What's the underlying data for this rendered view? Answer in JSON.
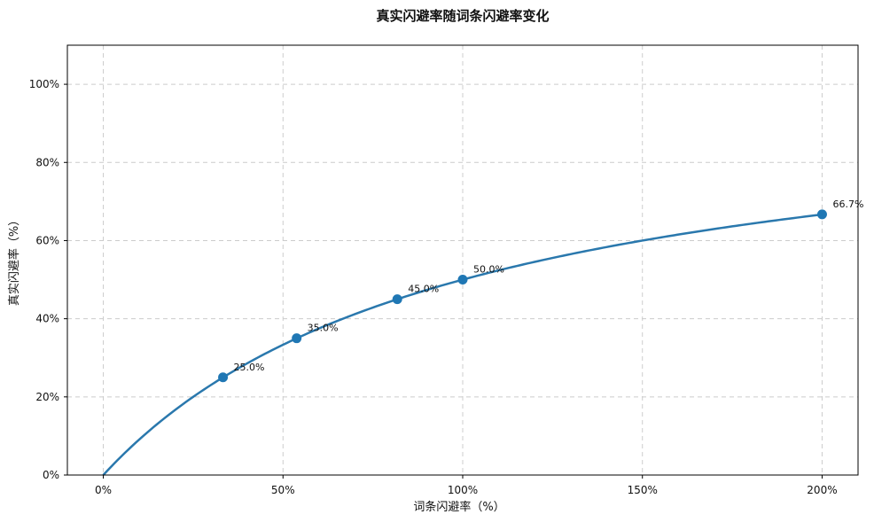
{
  "chart_data": {
    "type": "line",
    "title": "真实闪避率随词条闪避率变化",
    "xlabel": "词条闪避率（%）",
    "ylabel": "真实闪避率（%）",
    "xlim": [
      -10,
      210
    ],
    "ylim": [
      0,
      110
    ],
    "x_ticks": [
      0,
      50,
      100,
      150,
      200
    ],
    "x_tick_labels": [
      "0%",
      "50%",
      "100%",
      "150%",
      "200%"
    ],
    "y_ticks": [
      0,
      20,
      40,
      60,
      80,
      100
    ],
    "y_tick_labels": [
      "0%",
      "20%",
      "40%",
      "60%",
      "80%",
      "100%"
    ],
    "grid": true,
    "line_color": "#2a78ad",
    "marker_color": "#1f77b4",
    "curve": {
      "x_min": 0,
      "x_max": 200
    },
    "points": [
      {
        "x": 33.3,
        "y": 25.0,
        "label": "25.0%"
      },
      {
        "x": 53.8,
        "y": 35.0,
        "label": "35.0%"
      },
      {
        "x": 81.8,
        "y": 45.0,
        "label": "45.0%"
      },
      {
        "x": 100.0,
        "y": 50.0,
        "label": "50.0%"
      },
      {
        "x": 200.0,
        "y": 66.7,
        "label": "66.7%"
      }
    ]
  }
}
